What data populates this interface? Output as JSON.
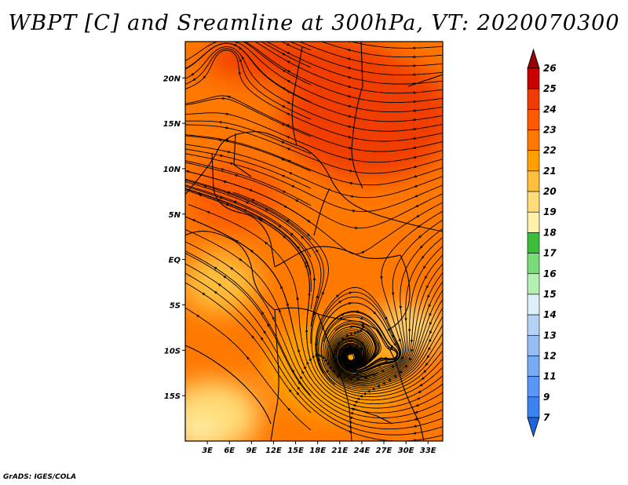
{
  "title": "WBPT [C] and Sreamline at 300hPa, VT: 2020070300",
  "credit": "GrADS: IGES/COLA",
  "map": {
    "lon_range": [
      0,
      35
    ],
    "lat_range": [
      -20,
      24
    ],
    "lon_ticks": [
      {
        "v": 3,
        "label": "3E"
      },
      {
        "v": 6,
        "label": "6E"
      },
      {
        "v": 9,
        "label": "9E"
      },
      {
        "v": 12,
        "label": "12E"
      },
      {
        "v": 15,
        "label": "15E"
      },
      {
        "v": 18,
        "label": "18E"
      },
      {
        "v": 21,
        "label": "21E"
      },
      {
        "v": 24,
        "label": "24E"
      },
      {
        "v": 27,
        "label": "27E"
      },
      {
        "v": 30,
        "label": "30E"
      },
      {
        "v": 33,
        "label": "33E"
      }
    ],
    "lat_ticks": [
      {
        "v": 20,
        "label": "20N"
      },
      {
        "v": 15,
        "label": "15N"
      },
      {
        "v": 10,
        "label": "10N"
      },
      {
        "v": 5,
        "label": "5N"
      },
      {
        "v": 0,
        "label": "EQ"
      },
      {
        "v": -5,
        "label": "5S"
      },
      {
        "v": -10,
        "label": "10S"
      },
      {
        "v": -15,
        "label": "15S"
      }
    ],
    "features": {
      "cyclonic_center": {
        "lon": 22.5,
        "lat": -10.8
      },
      "secondary_center": {
        "lon": 28.5,
        "lat": -10.5
      }
    }
  },
  "colorbar": {
    "labels": [
      "7",
      "9",
      "11",
      "12",
      "13",
      "14",
      "15",
      "16",
      "17",
      "18",
      "19",
      "20",
      "21",
      "22",
      "23",
      "24",
      "25",
      "26"
    ],
    "colors": [
      "#1e64dc",
      "#3c82f0",
      "#5a96f5",
      "#78aaf5",
      "#96bef5",
      "#b4d2f5",
      "#dcf0fa",
      "#b4f0b4",
      "#78dc78",
      "#3cbe3c",
      "#fff0aa",
      "#ffdc78",
      "#ffbe3c",
      "#ffa000",
      "#ff7800",
      "#ff5a00",
      "#f03c00",
      "#c80000",
      "#960000"
    ]
  }
}
